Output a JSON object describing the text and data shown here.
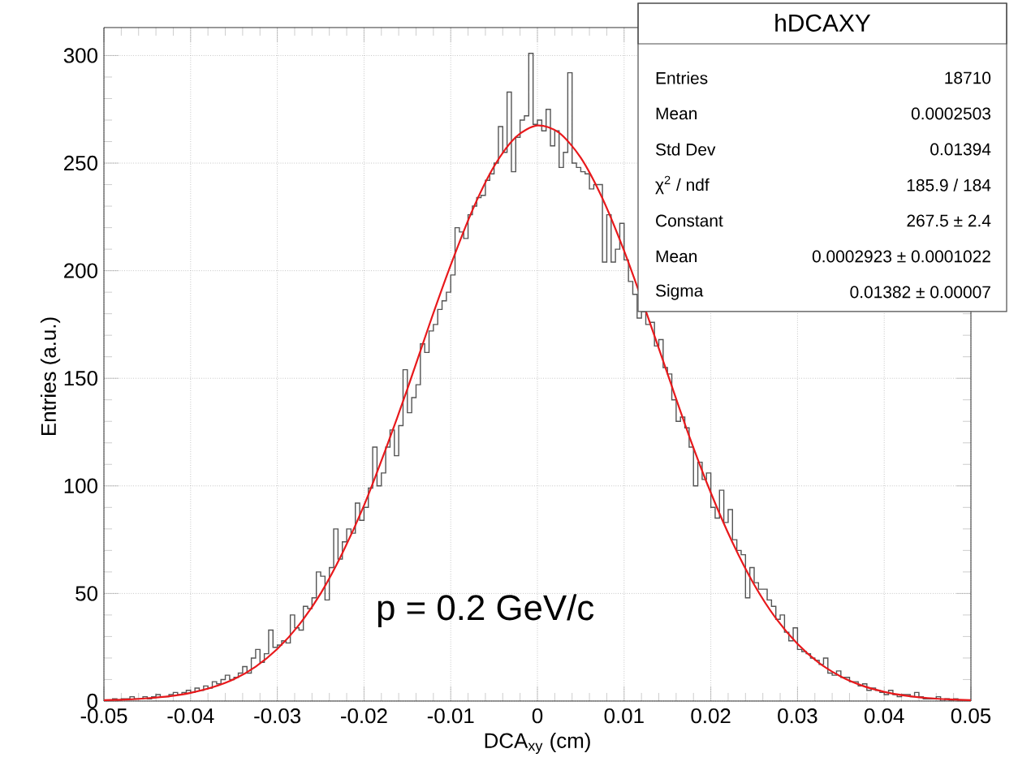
{
  "chart_data": {
    "type": "histogram",
    "xlabel": "DCA$_{xy}$ (cm)",
    "ylabel": "Entries (a.u.)",
    "xlim": [
      -0.05,
      0.05
    ],
    "ylim": [
      0,
      313
    ],
    "xticks": [
      -0.05,
      -0.04,
      -0.03,
      -0.02,
      -0.01,
      0,
      0.01,
      0.02,
      0.03,
      0.04,
      0.05
    ],
    "yticks": [
      0,
      50,
      100,
      150,
      200,
      250,
      300
    ],
    "grid": true,
    "annotations": [
      "p = 0.2 GeV/c",
      "hDCAXY",
      "Entries",
      "18710",
      "Mean",
      "0.0002503",
      "Std Dev",
      "0.01394",
      "χ$^{2}$ / ndf",
      "185.9 / 184",
      "Constant",
      "267.5 ± 2.4",
      "Mean",
      "0.0002923 ± 0.0001022",
      "Sigma",
      "0.01382 ± 0.00007"
    ],
    "bins": [
      -0.05,
      -0.0495,
      -0.049,
      -0.0485,
      -0.048,
      -0.0475,
      -0.047,
      -0.0465,
      -0.046,
      -0.0455,
      -0.045,
      -0.0445,
      -0.044,
      -0.0435,
      -0.043,
      -0.0425,
      -0.042,
      -0.0415,
      -0.041,
      -0.0405,
      -0.04,
      -0.0395,
      -0.039,
      -0.0385,
      -0.038,
      -0.0375,
      -0.037,
      -0.0365,
      -0.036,
      -0.0355,
      -0.035,
      -0.0345,
      -0.034,
      -0.0335,
      -0.033,
      -0.0325,
      -0.032,
      -0.0315,
      -0.031,
      -0.0305,
      -0.03,
      -0.0295,
      -0.029,
      -0.0285,
      -0.028,
      -0.0275,
      -0.027,
      -0.0265,
      -0.026,
      -0.0255,
      -0.025,
      -0.0245,
      -0.024,
      -0.0235,
      -0.023,
      -0.0225,
      -0.022,
      -0.0215,
      -0.021,
      -0.0205,
      -0.02,
      -0.0195,
      -0.019,
      -0.0185,
      -0.018,
      -0.0175,
      -0.017,
      -0.0165,
      -0.016,
      -0.0155,
      -0.015,
      -0.0145,
      -0.014,
      -0.0135,
      -0.013,
      -0.0125,
      -0.012,
      -0.0115,
      -0.011,
      -0.0105,
      -0.01,
      -0.0095,
      -0.009,
      -0.0085,
      -0.008,
      -0.0075,
      -0.007,
      -0.0065,
      -0.006,
      -0.0055,
      -0.005,
      -0.0045,
      -0.004,
      -0.0035,
      -0.003,
      -0.0025,
      -0.002,
      -0.0015,
      -0.001,
      -0.0005,
      0,
      0.0005,
      0.001,
      0.0015,
      0.002,
      0.0025,
      0.003,
      0.0035,
      0.004,
      0.0045,
      0.005,
      0.0055,
      0.006,
      0.0065,
      0.007,
      0.0075,
      0.008,
      0.0085,
      0.009,
      0.0095,
      0.01,
      0.0105,
      0.011,
      0.0115,
      0.012,
      0.0125,
      0.013,
      0.0135,
      0.014,
      0.0145,
      0.015,
      0.0155,
      0.016,
      0.0165,
      0.017,
      0.0175,
      0.018,
      0.0185,
      0.019,
      0.0195,
      0.02,
      0.0205,
      0.021,
      0.0215,
      0.022,
      0.0225,
      0.023,
      0.0235,
      0.024,
      0.0245,
      0.025,
      0.0255,
      0.026,
      0.0265,
      0.027,
      0.0275,
      0.028,
      0.0285,
      0.029,
      0.0295,
      0.03,
      0.0305,
      0.031,
      0.0315,
      0.032,
      0.0325,
      0.033,
      0.0335,
      0.034,
      0.0345,
      0.035,
      0.0355,
      0.036,
      0.0365,
      0.037,
      0.0375,
      0.038,
      0.0385,
      0.039,
      0.0395,
      0.04,
      0.0405,
      0.041,
      0.0415,
      0.042,
      0.0425,
      0.043,
      0.0435,
      0.044,
      0.0445,
      0.045,
      0.0455,
      0.046,
      0.0465,
      0.047,
      0.0475,
      0.048,
      0.0485,
      0.049,
      0.0495,
      0.05
    ],
    "series": [
      {
        "type": "histogram",
        "color": "#555555",
        "values": [
          0,
          0,
          1,
          0,
          1,
          1,
          2,
          1,
          1,
          2,
          1,
          2,
          3,
          2,
          2,
          3,
          4,
          3,
          4,
          5,
          4,
          6,
          5,
          7,
          6,
          9,
          8,
          10,
          12,
          10,
          11,
          13,
          16,
          13,
          20,
          24,
          18,
          22,
          33,
          25,
          26,
          28,
          27,
          40,
          34,
          33,
          44,
          43,
          48,
          60,
          58,
          47,
          62,
          80,
          66,
          74,
          80,
          78,
          92,
          84,
          90,
          99,
          118,
          100,
          106,
          118,
          126,
          114,
          128,
          154,
          134,
          141,
          147,
          166,
          162,
          172,
          175,
          182,
          186,
          190,
          198,
          220,
          218,
          215,
          226,
          230,
          234,
          235,
          242,
          245,
          250,
          267,
          255,
          283,
          246,
          262,
          270,
          272,
          301,
          268,
          270,
          265,
          275,
          258,
          265,
          248,
          255,
          292,
          250,
          248,
          246,
          245,
          238,
          240,
          240,
          204,
          226,
          204,
          210,
          222,
          205,
          195,
          189,
          178,
          181,
          175,
          176,
          165,
          168,
          155,
          152,
          140,
          130,
          132,
          127,
          118,
          100,
          111,
          103,
          106,
          90,
          85,
          98,
          83,
          89,
          75,
          70,
          68,
          48,
          62,
          55,
          52,
          52,
          47,
          44,
          38,
          40,
          32,
          28,
          34,
          24,
          23,
          22,
          20,
          19,
          17,
          20,
          13,
          12,
          14,
          11,
          11,
          9,
          9,
          7,
          8,
          5,
          6,
          5,
          4,
          3,
          5,
          3,
          2,
          3,
          3,
          2,
          4,
          2,
          1,
          1,
          1,
          2,
          0,
          1,
          0,
          1,
          0,
          0,
          0
        ]
      },
      {
        "type": "line",
        "color": "#e8191c",
        "x": [
          -0.05,
          -0.0475,
          -0.045,
          -0.0425,
          -0.04,
          -0.0375,
          -0.035,
          -0.0325,
          -0.03,
          -0.0275,
          -0.025,
          -0.0225,
          -0.02,
          -0.0175,
          -0.015,
          -0.0125,
          -0.01,
          -0.0075,
          -0.005,
          -0.0025,
          0,
          0.0025,
          0.005,
          0.0075,
          0.01,
          0.0125,
          0.015,
          0.0175,
          0.02,
          0.0225,
          0.025,
          0.0275,
          0.03,
          0.0325,
          0.035,
          0.0375,
          0.04,
          0.0425,
          0.045,
          0.0475,
          0.05
        ],
        "values": [
          0.4,
          0.7,
          1.3,
          2.2,
          3.8,
          6.4,
          10.2,
          16.0,
          24.2,
          35.4,
          50.0,
          68.7,
          90.9,
          117.0,
          145.0,
          174.5,
          202.6,
          228.1,
          248.5,
          262.1,
          267.5,
          264.1,
          252.5,
          233.6,
          209.2,
          181.3,
          152.2,
          123.2,
          96.8,
          73.7,
          54.1,
          38.5,
          26.6,
          17.7,
          11.4,
          7.1,
          4.3,
          2.5,
          1.4,
          0.8,
          0.4
        ]
      }
    ]
  }
}
